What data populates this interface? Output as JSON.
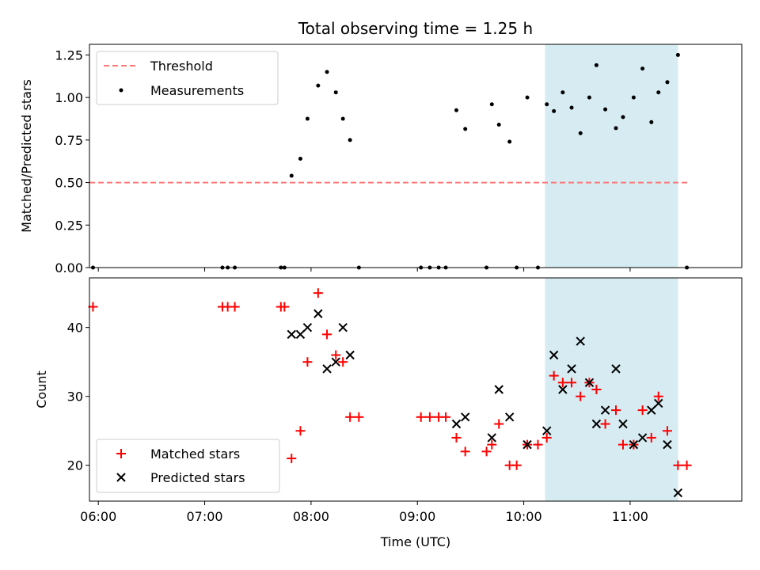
{
  "chart_data": {
    "type": "scatter",
    "title": "Total observing time = 1.25 h",
    "xlabel": "Time (UTC)",
    "x_tick_labels": [
      "06:00",
      "07:00",
      "08:00",
      "09:00",
      "10:00",
      "11:00"
    ],
    "xlim": [
      "05:55",
      "12:03"
    ],
    "highlight_span": {
      "start": "10:12",
      "end": "11:27",
      "color": "#add8e6"
    },
    "panels": [
      {
        "id": "ratio",
        "ylabel": "Matched/Predicted stars",
        "ylim": [
          0,
          1.3125
        ],
        "y_ticks": [
          0.0,
          0.25,
          0.5,
          0.75,
          1.0,
          1.25
        ],
        "y_tick_labels": [
          "0.00",
          "0.25",
          "0.50",
          "0.75",
          "1.00",
          "1.25"
        ],
        "legend": {
          "position": "top-left",
          "entries": [
            "Threshold",
            "Measurements"
          ]
        },
        "series": [
          {
            "name": "Threshold",
            "kind": "line",
            "style": "dashed",
            "color": "#ff7777",
            "points": [
              [
                "05:55",
                0.5
              ],
              [
                "11:33",
                0.5
              ]
            ]
          },
          {
            "name": "Measurements",
            "kind": "scatter",
            "marker": "dot",
            "color": "#000000",
            "points": [
              [
                "05:57",
                0.0
              ],
              [
                "07:10",
                0.0
              ],
              [
                "07:13",
                0.0
              ],
              [
                "07:17",
                0.0
              ],
              [
                "07:43",
                0.0
              ],
              [
                "07:45",
                0.0
              ],
              [
                "07:49",
                0.54
              ],
              [
                "07:54",
                0.64
              ],
              [
                "07:58",
                0.875
              ],
              [
                "08:04",
                1.07
              ],
              [
                "08:09",
                1.15
              ],
              [
                "08:14",
                1.03
              ],
              [
                "08:18",
                0.875
              ],
              [
                "08:22",
                0.75
              ],
              [
                "08:27",
                0.0
              ],
              [
                "09:02",
                0.0
              ],
              [
                "09:07",
                0.0
              ],
              [
                "09:12",
                0.0
              ],
              [
                "09:16",
                0.0
              ],
              [
                "09:22",
                0.925
              ],
              [
                "09:27",
                0.815
              ],
              [
                "09:39",
                0.0
              ],
              [
                "09:42",
                0.96
              ],
              [
                "09:46",
                0.84
              ],
              [
                "09:52",
                0.74
              ],
              [
                "09:56",
                0.0
              ],
              [
                "10:02",
                1.0
              ],
              [
                "10:08",
                0.0
              ],
              [
                "10:13",
                0.96
              ],
              [
                "10:17",
                0.92
              ],
              [
                "10:22",
                1.03
              ],
              [
                "10:27",
                0.94
              ],
              [
                "10:32",
                0.79
              ],
              [
                "10:37",
                1.0
              ],
              [
                "10:41",
                1.19
              ],
              [
                "10:46",
                0.93
              ],
              [
                "10:52",
                0.82
              ],
              [
                "10:56",
                0.885
              ],
              [
                "11:02",
                1.0
              ],
              [
                "11:07",
                1.17
              ],
              [
                "11:12",
                0.855
              ],
              [
                "11:16",
                1.03
              ],
              [
                "11:21",
                1.09
              ],
              [
                "11:27",
                1.25
              ],
              [
                "11:32",
                0.0
              ]
            ]
          }
        ]
      },
      {
        "id": "count",
        "ylabel": "Count",
        "ylim": [
          14.8,
          47.2
        ],
        "y_ticks": [
          20,
          30,
          40
        ],
        "y_tick_labels": [
          "20",
          "30",
          "40"
        ],
        "legend": {
          "position": "bottom-left",
          "entries": [
            "Matched stars",
            "Predicted stars"
          ]
        },
        "series": [
          {
            "name": "Matched stars",
            "kind": "scatter",
            "marker": "plus",
            "color": "#ff0000",
            "points": [
              [
                "05:57",
                43
              ],
              [
                "07:10",
                43
              ],
              [
                "07:13",
                43
              ],
              [
                "07:17",
                43
              ],
              [
                "07:43",
                43
              ],
              [
                "07:45",
                43
              ],
              [
                "07:49",
                21
              ],
              [
                "07:54",
                25
              ],
              [
                "07:58",
                35
              ],
              [
                "08:04",
                45
              ],
              [
                "08:09",
                39
              ],
              [
                "08:14",
                36
              ],
              [
                "08:18",
                35
              ],
              [
                "08:22",
                27
              ],
              [
                "08:27",
                27
              ],
              [
                "09:02",
                27
              ],
              [
                "09:07",
                27
              ],
              [
                "09:12",
                27
              ],
              [
                "09:16",
                27
              ],
              [
                "09:22",
                24
              ],
              [
                "09:27",
                22
              ],
              [
                "09:39",
                22
              ],
              [
                "09:42",
                23
              ],
              [
                "09:46",
                26
              ],
              [
                "09:52",
                20
              ],
              [
                "09:56",
                20
              ],
              [
                "10:02",
                23
              ],
              [
                "10:08",
                23
              ],
              [
                "10:13",
                24
              ],
              [
                "10:17",
                33
              ],
              [
                "10:22",
                32
              ],
              [
                "10:27",
                32
              ],
              [
                "10:32",
                30
              ],
              [
                "10:37",
                32
              ],
              [
                "10:41",
                31
              ],
              [
                "10:46",
                26
              ],
              [
                "10:52",
                28
              ],
              [
                "10:56",
                23
              ],
              [
                "11:02",
                23
              ],
              [
                "11:07",
                28
              ],
              [
                "11:12",
                24
              ],
              [
                "11:16",
                30
              ],
              [
                "11:21",
                25
              ],
              [
                "11:27",
                20
              ],
              [
                "11:32",
                20
              ]
            ]
          },
          {
            "name": "Predicted stars",
            "kind": "scatter",
            "marker": "x",
            "color": "#000000",
            "points": [
              [
                "07:49",
                39
              ],
              [
                "07:54",
                39
              ],
              [
                "07:58",
                40
              ],
              [
                "08:04",
                42
              ],
              [
                "08:09",
                34
              ],
              [
                "08:14",
                35
              ],
              [
                "08:18",
                40
              ],
              [
                "08:22",
                36
              ],
              [
                "09:22",
                26
              ],
              [
                "09:27",
                27
              ],
              [
                "09:42",
                24
              ],
              [
                "09:46",
                31
              ],
              [
                "09:52",
                27
              ],
              [
                "10:02",
                23
              ],
              [
                "10:13",
                25
              ],
              [
                "10:17",
                36
              ],
              [
                "10:22",
                31
              ],
              [
                "10:27",
                34
              ],
              [
                "10:32",
                38
              ],
              [
                "10:37",
                32
              ],
              [
                "10:41",
                26
              ],
              [
                "10:46",
                28
              ],
              [
                "10:52",
                34
              ],
              [
                "10:56",
                26
              ],
              [
                "11:02",
                23
              ],
              [
                "11:07",
                24
              ],
              [
                "11:12",
                28
              ],
              [
                "11:16",
                29
              ],
              [
                "11:21",
                23
              ],
              [
                "11:27",
                16
              ]
            ]
          }
        ]
      }
    ]
  }
}
